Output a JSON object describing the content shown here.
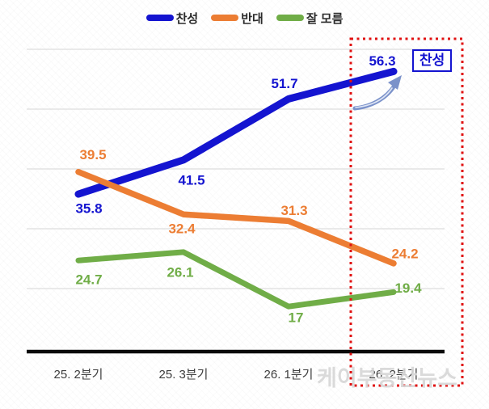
{
  "chart_data": {
    "type": "line",
    "title": "",
    "xlabel": "",
    "ylabel": "",
    "categories": [
      "25. 2분기",
      "25. 3분기",
      "26. 1분기",
      "26. 2분기"
    ],
    "series": [
      {
        "name": "찬성",
        "color": "#1414d0",
        "values": [
          35.8,
          41.5,
          51.7,
          56.3
        ]
      },
      {
        "name": "반대",
        "color": "#ec7d33",
        "values": [
          39.5,
          32.4,
          31.3,
          24.2
        ]
      },
      {
        "name": "잘 모름",
        "color": "#70ad47",
        "values": [
          24.7,
          26.1,
          17,
          19.4
        ]
      }
    ],
    "ylim": [
      10,
      65
    ],
    "gridlines": [
      20,
      30,
      40,
      50,
      60
    ],
    "grid": true,
    "legend_position": "top-center",
    "gridline_color": "#d6d6d6",
    "axis_color": "#0a0a0a"
  },
  "annotation": {
    "highlight_label": "찬성",
    "highlighted_category": "26. 2분기",
    "highlight_box_color": "#e01111",
    "arrow_color": "#7b92ca",
    "callout_value": "56.3"
  },
  "watermark": "케이부동산뉴스"
}
